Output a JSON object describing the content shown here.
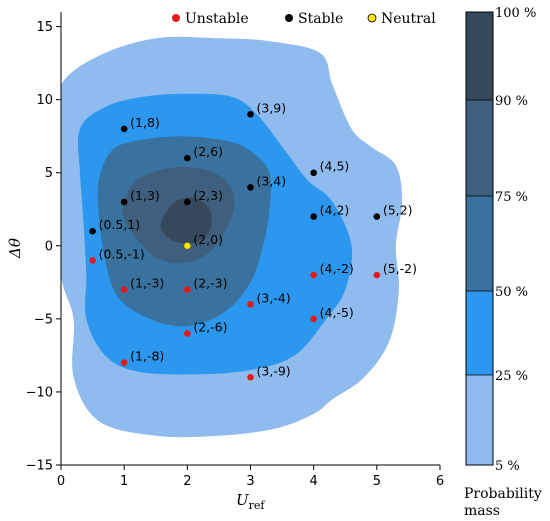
{
  "chart_data": {
    "type": "scatter",
    "xlabel": "U",
    "xlabel_sub": "ref",
    "ylabel": "Δθ",
    "xlim": [
      0,
      6
    ],
    "ylim": [
      -15,
      16
    ],
    "xticks": [
      "0",
      "1",
      "2",
      "3",
      "4",
      "5",
      "6"
    ],
    "yticks": [
      "−15",
      "−10",
      "−5",
      "0",
      "5",
      "10",
      "15"
    ],
    "legend_position": "top",
    "legend": [
      {
        "name": "Unstable",
        "color": "#e31a1c"
      },
      {
        "name": "Stable",
        "color": "#000000"
      },
      {
        "name": "Neutral",
        "color": "#ffe600"
      }
    ],
    "points": [
      {
        "x": 1,
        "y": 8,
        "label": "(1,8)",
        "class": "Stable"
      },
      {
        "x": 3,
        "y": 9,
        "label": "(3,9)",
        "class": "Stable"
      },
      {
        "x": 2,
        "y": 6,
        "label": "(2,6)",
        "class": "Stable"
      },
      {
        "x": 4,
        "y": 5,
        "label": "(4,5)",
        "class": "Stable"
      },
      {
        "x": 1,
        "y": 3,
        "label": "(1,3)",
        "class": "Stable"
      },
      {
        "x": 2,
        "y": 3,
        "label": "(2,3)",
        "class": "Stable"
      },
      {
        "x": 3,
        "y": 4,
        "label": "(3,4)",
        "class": "Stable"
      },
      {
        "x": 0.5,
        "y": 1,
        "label": "(0.5,1)",
        "class": "Stable"
      },
      {
        "x": 4,
        "y": 2,
        "label": "(4,2)",
        "class": "Stable"
      },
      {
        "x": 5,
        "y": 2,
        "label": "(5,2)",
        "class": "Stable"
      },
      {
        "x": 2,
        "y": 0,
        "label": "(2,0)",
        "class": "Neutral"
      },
      {
        "x": 0.5,
        "y": -1,
        "label": "(0.5,-1)",
        "class": "Unstable"
      },
      {
        "x": 4,
        "y": -2,
        "label": "(4,-2)",
        "class": "Unstable"
      },
      {
        "x": 5,
        "y": -2,
        "label": "(5,-2)",
        "class": "Unstable"
      },
      {
        "x": 1,
        "y": -3,
        "label": "(1,-3)",
        "class": "Unstable"
      },
      {
        "x": 2,
        "y": -3,
        "label": "(2,-3)",
        "class": "Unstable"
      },
      {
        "x": 3,
        "y": -4,
        "label": "(3,-4)",
        "class": "Unstable"
      },
      {
        "x": 4,
        "y": -5,
        "label": "(4,-5)",
        "class": "Unstable"
      },
      {
        "x": 2,
        "y": -6,
        "label": "(2,-6)",
        "class": "Unstable"
      },
      {
        "x": 1,
        "y": -8,
        "label": "(1,-8)",
        "class": "Unstable"
      },
      {
        "x": 3,
        "y": -9,
        "label": "(3,-9)",
        "class": "Unstable"
      }
    ],
    "contours": [
      {
        "level": "5 %",
        "color": "#8fbbef",
        "points": [
          [
            0,
            11
          ],
          [
            0.6,
            13
          ],
          [
            1.5,
            14.2
          ],
          [
            2.5,
            14.2
          ],
          [
            3.3,
            14
          ],
          [
            4.1,
            13.2
          ],
          [
            4.3,
            11
          ],
          [
            4.6,
            8
          ],
          [
            4.9,
            6.8
          ],
          [
            5.3,
            5.5
          ],
          [
            5.4,
            3
          ],
          [
            5.3,
            0
          ],
          [
            5.35,
            -3
          ],
          [
            5.2,
            -6.5
          ],
          [
            4.8,
            -9
          ],
          [
            4.3,
            -10.5
          ],
          [
            4.0,
            -11.5
          ],
          [
            3.4,
            -12.5
          ],
          [
            2.5,
            -13
          ],
          [
            1.5,
            -13
          ],
          [
            0.6,
            -12
          ],
          [
            0.2,
            -9
          ],
          [
            0.2,
            -5
          ],
          [
            0,
            -2
          ],
          [
            0,
            3
          ],
          [
            0,
            8
          ]
        ]
      },
      {
        "level": "25 %",
        "color": "#2c97ee",
        "points": [
          [
            0.3,
            8
          ],
          [
            0.7,
            9.5
          ],
          [
            1.3,
            10.2
          ],
          [
            2.0,
            10.4
          ],
          [
            2.7,
            10.2
          ],
          [
            3.1,
            9
          ],
          [
            3.55,
            6.5
          ],
          [
            3.9,
            4.5
          ],
          [
            4.3,
            3
          ],
          [
            4.6,
            0
          ],
          [
            4.5,
            -3
          ],
          [
            4.2,
            -5
          ],
          [
            3.7,
            -7.5
          ],
          [
            3.0,
            -8.5
          ],
          [
            2.1,
            -8.8
          ],
          [
            1.2,
            -8.6
          ],
          [
            0.7,
            -7.5
          ],
          [
            0.4,
            -5
          ],
          [
            0.4,
            -2
          ],
          [
            0.35,
            2
          ],
          [
            0.3,
            5
          ]
        ]
      },
      {
        "level": "50 %",
        "color": "#39729f",
        "points": [
          [
            0.6,
            4.5
          ],
          [
            0.8,
            6.5
          ],
          [
            1.2,
            7.2
          ],
          [
            1.9,
            7.5
          ],
          [
            2.6,
            7.2
          ],
          [
            3.0,
            6.5
          ],
          [
            3.3,
            5
          ],
          [
            3.3,
            2.5
          ],
          [
            3.2,
            0
          ],
          [
            3.0,
            -2.5
          ],
          [
            2.6,
            -4.5
          ],
          [
            2.0,
            -5.5
          ],
          [
            1.4,
            -5
          ],
          [
            0.9,
            -3.5
          ],
          [
            0.7,
            -1
          ],
          [
            0.6,
            2
          ]
        ]
      },
      {
        "level": "75 %",
        "color": "#3f5f7f",
        "points": [
          [
            1.0,
            3
          ],
          [
            1.2,
            4.5
          ],
          [
            1.7,
            5.3
          ],
          [
            2.2,
            5.3
          ],
          [
            2.6,
            4.5
          ],
          [
            2.75,
            3
          ],
          [
            2.6,
            1
          ],
          [
            2.3,
            -0.6
          ],
          [
            1.9,
            -1.2
          ],
          [
            1.5,
            -0.8
          ],
          [
            1.2,
            0.5
          ],
          [
            1.0,
            1.8
          ]
        ]
      },
      {
        "level": "90 %",
        "color": "#36485c",
        "points": [
          [
            1.6,
            1.8
          ],
          [
            1.8,
            3
          ],
          [
            2.1,
            3.3
          ],
          [
            2.35,
            2.5
          ],
          [
            2.35,
            1
          ],
          [
            2.1,
            0.2
          ],
          [
            1.8,
            0.3
          ],
          [
            1.6,
            1
          ]
        ]
      }
    ],
    "colorbar": {
      "label_line1": "Probability",
      "label_line2": "mass",
      "ticks": [
        "5 %",
        "25 %",
        "50 %",
        "75 %",
        "90 %",
        "100 %"
      ],
      "bands": [
        {
          "color": "#8fbbef"
        },
        {
          "color": "#2c97ee"
        },
        {
          "color": "#39729f"
        },
        {
          "color": "#3f5f7f"
        },
        {
          "color": "#36485c"
        }
      ]
    }
  }
}
